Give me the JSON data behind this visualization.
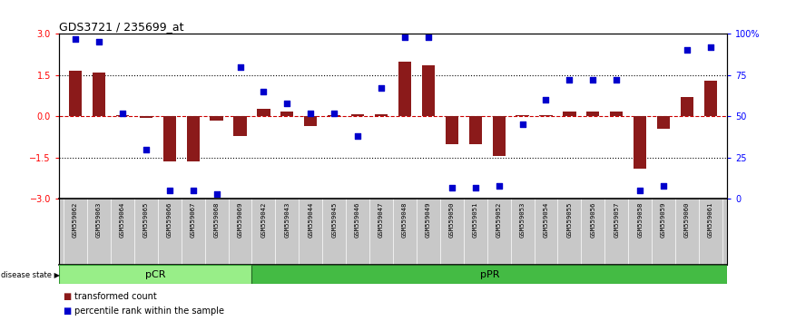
{
  "title": "GDS3721 / 235699_at",
  "samples": [
    "GSM559062",
    "GSM559063",
    "GSM559064",
    "GSM559065",
    "GSM559066",
    "GSM559067",
    "GSM559068",
    "GSM559069",
    "GSM559042",
    "GSM559043",
    "GSM559044",
    "GSM559045",
    "GSM559046",
    "GSM559047",
    "GSM559048",
    "GSM559049",
    "GSM559050",
    "GSM559051",
    "GSM559052",
    "GSM559053",
    "GSM559054",
    "GSM559055",
    "GSM559056",
    "GSM559057",
    "GSM559058",
    "GSM559059",
    "GSM559060",
    "GSM559061"
  ],
  "transformed_count": [
    1.65,
    1.58,
    0.05,
    -0.05,
    -1.62,
    -1.65,
    -0.15,
    -0.7,
    0.28,
    0.18,
    -0.35,
    0.05,
    0.08,
    0.08,
    2.0,
    1.85,
    -1.0,
    -1.0,
    -1.45,
    0.05,
    0.05,
    0.18,
    0.18,
    0.18,
    -1.9,
    -0.45,
    0.7,
    1.3
  ],
  "percentile_rank": [
    97,
    95,
    52,
    30,
    5,
    5,
    3,
    80,
    65,
    58,
    52,
    52,
    38,
    67,
    98,
    98,
    7,
    7,
    8,
    45,
    60,
    72,
    72,
    72,
    5,
    8,
    90,
    92
  ],
  "pCR_count": 8,
  "pPR_count": 20,
  "ylim": [
    -3,
    3
  ],
  "yticks_left": [
    -3,
    -1.5,
    0,
    1.5,
    3
  ],
  "yticks_right_vals": [
    0,
    25,
    50,
    75,
    100
  ],
  "bar_color": "#8B1A1A",
  "dot_color": "#0000CC",
  "zero_line_color": "#CC0000",
  "bg_color": "#FFFFFF",
  "sample_bg_color": "#C8C8C8",
  "pCR_color": "#98EE88",
  "pPR_color": "#44BB44",
  "label_bar": "transformed count",
  "label_dot": "percentile rank within the sample"
}
